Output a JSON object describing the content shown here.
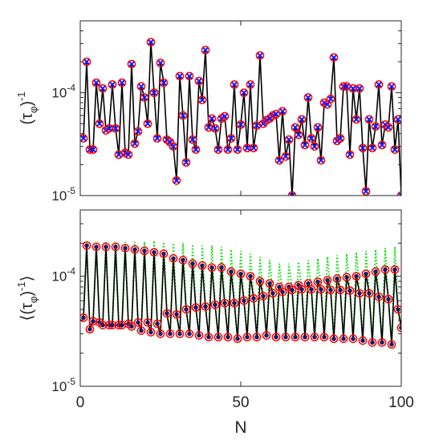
{
  "chart_data": [
    {
      "type": "line",
      "panel": "top",
      "ylabel": "(τ_φ)^-1",
      "yscale": "log",
      "xlim": [
        0,
        100
      ],
      "ylim": [
        1e-05,
        0.0005
      ],
      "yticks": [
        "10^-5",
        "10^-4"
      ],
      "grid": false,
      "series": [
        {
          "name": "",
          "style": "black line",
          "color": "#000000",
          "x": [
            1,
            2,
            3,
            4,
            5,
            6,
            7,
            8,
            9,
            10,
            11,
            12,
            13,
            14,
            15,
            16,
            17,
            18,
            19,
            20,
            21,
            22,
            23,
            24,
            25,
            26,
            27,
            28,
            29,
            30,
            31,
            32,
            33,
            34,
            35,
            36,
            37,
            38,
            39,
            40,
            41,
            42,
            43,
            44,
            45,
            46,
            47,
            48,
            49,
            50,
            51,
            52,
            53,
            54,
            55,
            56,
            57,
            58,
            59,
            60,
            61,
            62,
            63,
            64,
            65,
            66,
            67,
            68,
            69,
            70,
            71,
            72,
            73,
            74,
            75,
            76,
            77,
            78,
            79,
            80,
            81,
            82,
            83,
            84,
            85,
            86,
            87,
            88,
            89,
            90,
            91,
            92,
            93,
            94,
            95,
            96,
            97,
            98,
            99,
            100
          ],
          "values": [
            3.6e-05,
            0.0002,
            2.8e-05,
            2.8e-05,
            0.000125,
            5e-05,
            0.00011,
            4.3e-05,
            4.5e-05,
            0.00012,
            4.5e-05,
            2.5e-05,
            0.000125,
            2.6e-05,
            2.5e-05,
            0.00019,
            3.2e-05,
            4.2e-05,
            0.000115,
            9e-05,
            5e-05,
            0.00031,
            0.0001,
            3.6e-05,
            0.000195,
            0.000125,
            3.5e-05,
            3.3e-05,
            3e-05,
            1.4e-05,
            0.000145,
            6e-05,
            2.1e-05,
            0.000145,
            3.5e-05,
            2.8e-05,
            0.00013,
            8.5e-05,
            0.00026,
            4.6e-05,
            5.6e-05,
            4.5e-05,
            2.8e-05,
            5.6e-05,
            5.9e-05,
            2.8e-05,
            3.6e-05,
            0.00012,
            2.8e-05,
            4.9e-05,
            0.0001,
            2.9e-05,
            0.00012,
            2.9e-05,
            4.8e-05,
            0.00023,
            5e-05,
            5.4e-05,
            5.6e-05,
            6e-05,
            6.2e-05,
            2.2e-05,
            6.6e-05,
            2.4e-05,
            3.5e-05,
            1e-05,
            4.6e-05,
            3.9e-05,
            5.5e-05,
            3.1e-05,
            9e-05,
            3.6e-05,
            3e-05,
            4.6e-05,
            2.2e-05,
            8e-05,
            7.7e-05,
            8.7e-05,
            0.00022,
            3.4e-05,
            3.6e-05,
            0.000115,
            0.000115,
            2.5e-05,
            0.00011,
            5.5e-05,
            0.00011,
            2.9e-05,
            1.1e-05,
            5.5e-05,
            2.9e-05,
            4.7e-05,
            0.00012,
            3.1e-05,
            4.9e-05,
            4.6e-05,
            0.000115,
            2.8e-05,
            5.5e-05,
            1e-05
          ]
        }
      ],
      "markers": [
        {
          "name": "",
          "symbol": "open circle",
          "color": "#ff0000"
        },
        {
          "name": "",
          "symbol": "x",
          "color": "#0000ff"
        }
      ]
    },
    {
      "type": "line",
      "panel": "bottom",
      "xlabel": "N",
      "ylabel": "⟨(τ_φ)^-1⟩",
      "yscale": "log",
      "xlim": [
        0,
        100
      ],
      "ylim": [
        1e-05,
        0.0004
      ],
      "xticks": [
        "0",
        "50",
        "100"
      ],
      "yticks": [
        "10^-5",
        "10^-4"
      ],
      "grid": false,
      "series": [
        {
          "name": "",
          "style": "black line with red open circles and navy dots",
          "color": "#000000",
          "x": [
            1,
            2,
            3,
            4,
            5,
            6,
            7,
            8,
            9,
            10,
            11,
            12,
            13,
            14,
            15,
            16,
            17,
            18,
            19,
            20,
            21,
            22,
            23,
            24,
            25,
            26,
            27,
            28,
            29,
            30,
            31,
            32,
            33,
            34,
            35,
            36,
            37,
            38,
            39,
            40,
            41,
            42,
            43,
            44,
            45,
            46,
            47,
            48,
            49,
            50,
            51,
            52,
            53,
            54,
            55,
            56,
            57,
            58,
            59,
            60,
            61,
            62,
            63,
            64,
            65,
            66,
            67,
            68,
            69,
            70,
            71,
            72,
            73,
            74,
            75,
            76,
            77,
            78,
            79,
            80,
            81,
            82,
            83,
            84,
            85,
            86,
            87,
            88,
            89,
            90,
            91,
            92,
            93,
            94,
            95,
            96,
            97,
            98,
            99,
            100
          ],
          "values": [
            4.2e-05,
            0.00019,
            3.3e-05,
            3.9e-05,
            0.000185,
            3.8e-05,
            3.6e-05,
            0.000185,
            3.6e-05,
            3.6e-05,
            0.000185,
            3.6e-05,
            3.6e-05,
            0.00018,
            3.7e-05,
            3.5e-05,
            0.000175,
            3.8e-05,
            3.2e-05,
            0.00017,
            3.8e-05,
            3.1e-05,
            0.000165,
            3.7e-05,
            3e-05,
            0.00016,
            4.6e-05,
            3e-05,
            0.000145,
            4.5e-05,
            3e-05,
            0.00014,
            5e-05,
            3e-05,
            0.00013,
            5.2e-05,
            2.9e-05,
            0.000125,
            5.3e-05,
            2.8e-05,
            0.00012,
            5.5e-05,
            2.8e-05,
            0.00012,
            5.7e-05,
            2.8e-05,
            0.00011,
            5.7e-05,
            2.7e-05,
            0.000105,
            6e-05,
            2.8e-05,
            0.0001,
            6.3e-05,
            2.8e-05,
            9e-05,
            6.6e-05,
            2.9e-05,
            8.6e-05,
            7e-05,
            2.8e-05,
            8e-05,
            7.2e-05,
            2.8e-05,
            8e-05,
            7.5e-05,
            2.8e-05,
            8.3e-05,
            7.6e-05,
            2.8e-05,
            8.6e-05,
            7.6e-05,
            2.8e-05,
            8.9e-05,
            7.6e-05,
            2.8e-05,
            9.2e-05,
            7.5e-05,
            2.7e-05,
            9.5e-05,
            7.5e-05,
            2.7e-05,
            9.8e-05,
            7.4e-05,
            2.7e-05,
            0.0001,
            7e-05,
            2.6e-05,
            0.000105,
            7e-05,
            2.5e-05,
            0.00011,
            6.5e-05,
            2.5e-05,
            0.000115,
            6.2e-05,
            2.4e-05,
            0.000115,
            5e-05,
            3.4e-05
          ]
        },
        {
          "name": "",
          "style": "green dotted",
          "color": "#00dd00",
          "x": [
            1,
            2,
            3,
            4,
            5,
            6,
            7,
            8,
            9,
            10,
            11,
            12,
            13,
            14,
            15,
            16,
            17,
            18,
            19,
            20,
            21,
            22,
            23,
            24,
            25,
            26,
            27,
            28,
            29,
            30,
            31,
            32,
            33,
            34,
            35,
            36,
            37,
            38,
            39,
            40,
            41,
            42,
            43,
            44,
            45,
            46,
            47,
            48,
            49,
            50,
            51,
            52,
            53,
            54,
            55,
            56,
            57,
            58,
            59,
            60,
            61,
            62,
            63,
            64,
            65,
            66,
            67,
            68,
            69,
            70,
            71,
            72,
            73,
            74,
            75,
            76,
            77,
            78,
            79,
            80,
            81,
            82,
            83,
            84,
            85,
            86,
            87,
            88,
            89,
            90,
            91,
            92,
            93,
            94,
            95,
            96,
            97,
            98,
            99,
            100
          ],
          "values": [
            4.2e-05,
            0.0002,
            3.3e-05,
            3.9e-05,
            0.0002,
            3.8e-05,
            3.6e-05,
            0.000205,
            3.6e-05,
            3.6e-05,
            0.000205,
            3.6e-05,
            3.6e-05,
            0.000205,
            3.7e-05,
            3.5e-05,
            0.000205,
            3.8e-05,
            3.2e-05,
            0.000205,
            3.8e-05,
            3.1e-05,
            0.00021,
            3.7e-05,
            3e-05,
            0.000205,
            4.6e-05,
            3e-05,
            0.0002,
            4.5e-05,
            3e-05,
            0.0002,
            5e-05,
            3e-05,
            0.000195,
            5.2e-05,
            2.9e-05,
            0.00019,
            5.3e-05,
            2.8e-05,
            0.00019,
            5.5e-05,
            2.8e-05,
            0.000185,
            5.7e-05,
            2.8e-05,
            0.000175,
            5.7e-05,
            2.7e-05,
            0.00017,
            6e-05,
            2.8e-05,
            0.00016,
            6.3e-05,
            2.8e-05,
            0.00015,
            6.6e-05,
            2.9e-05,
            0.00014,
            7e-05,
            2.8e-05,
            0.00013,
            7.2e-05,
            2.8e-05,
            0.00013,
            7.5e-05,
            2.8e-05,
            0.000135,
            7.6e-05,
            2.8e-05,
            0.00014,
            7.6e-05,
            2.8e-05,
            0.000145,
            7.6e-05,
            2.8e-05,
            0.00015,
            7.5e-05,
            2.7e-05,
            0.000155,
            7.5e-05,
            2.7e-05,
            0.00016,
            7.4e-05,
            2.7e-05,
            0.000165,
            7e-05,
            2.6e-05,
            0.00017,
            7e-05,
            2.5e-05,
            0.000175,
            6.5e-05,
            2.5e-05,
            0.00018,
            6.2e-05,
            2.4e-05,
            0.000185,
            5e-05,
            3.4e-05
          ]
        }
      ]
    }
  ]
}
